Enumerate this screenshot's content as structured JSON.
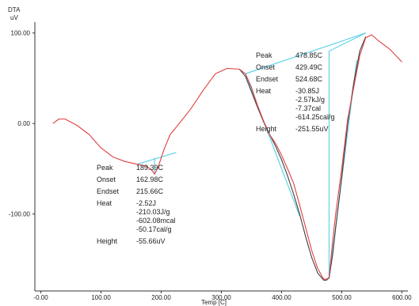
{
  "chart_data": {
    "type": "line",
    "ylabel": "DTA",
    "yunit": "uV",
    "xlabel": "Temp [C]",
    "xlim": [
      -10,
      610
    ],
    "ylim": [
      -185,
      112
    ],
    "x_ticks": [
      "-0.00",
      "100.00",
      "200.00",
      "300.00",
      "400.00",
      "500.00",
      "600.00"
    ],
    "x_tick_values": [
      0,
      100,
      200,
      300,
      400,
      500,
      600
    ],
    "y_ticks": [
      "100.00",
      "0.00",
      "-100.00"
    ],
    "y_tick_values": [
      100,
      0,
      -100
    ],
    "colors": {
      "curve_main": "#e04040",
      "curve_secondary": "#404040",
      "baseline": "#5fd3e8",
      "axis": "#333333"
    },
    "series": [
      {
        "color": "#e04040",
        "x": [
          20,
          30,
          40,
          60,
          80,
          100,
          120,
          140,
          160,
          175,
          185,
          189,
          195,
          205,
          215,
          230,
          250,
          270,
          290,
          310,
          330,
          340,
          350,
          360,
          370,
          380,
          390,
          400,
          410,
          420,
          430,
          440,
          450,
          460,
          470,
          475,
          479,
          485,
          490,
          500,
          510,
          520,
          530,
          540,
          550,
          560,
          580,
          600
        ],
        "y": [
          0,
          5,
          5,
          -2,
          -12,
          -27,
          -37,
          -42,
          -45,
          -47,
          -52,
          -56,
          -48,
          -28,
          -12,
          0,
          17,
          37,
          55,
          61,
          60,
          55,
          40,
          20,
          3,
          -12,
          -22,
          -35,
          -50,
          -66,
          -90,
          -115,
          -140,
          -160,
          -172,
          -172,
          -170,
          -130,
          -100,
          -50,
          5,
          40,
          75,
          95,
          98,
          92,
          82,
          68
        ]
      },
      {
        "color": "#404040",
        "x": [
          330,
          340,
          350,
          360,
          370,
          380,
          390,
          400,
          410,
          420,
          430,
          440,
          450,
          460,
          470,
          475,
          479,
          485,
          490,
          500,
          510,
          520,
          530,
          540
        ],
        "y": [
          60,
          52,
          35,
          18,
          2,
          -12,
          -25,
          -40,
          -58,
          -78,
          -100,
          -125,
          -148,
          -165,
          -173,
          -173,
          -170,
          -145,
          -115,
          -60,
          0,
          45,
          80,
          96
        ]
      }
    ],
    "baselines": [
      {
        "x": [
          160,
          225
        ],
        "y": [
          -45,
          -32
        ]
      },
      {
        "x": [
          189,
          189
        ],
        "y": [
          -56,
          -38
        ]
      },
      {
        "x": [
          340,
          540
        ],
        "y": [
          55,
          100
        ]
      },
      {
        "x": [
          340,
          430
        ],
        "y": [
          55,
          -102
        ]
      },
      {
        "x": [
          479,
          479
        ],
        "y": [
          -172,
          80
        ]
      },
      {
        "x": [
          479,
          540
        ],
        "y": [
          80,
          100
        ]
      },
      {
        "x": [
          479,
          525
        ],
        "y": [
          -172,
          70
        ]
      }
    ],
    "annotations": [
      {
        "rows": [
          {
            "label": "Peak",
            "values": [
              "189.39C"
            ]
          },
          {
            "label": "Onset",
            "values": [
              "162.98C"
            ]
          },
          {
            "label": "Endset",
            "values": [
              "215.66C"
            ]
          },
          {
            "label": "Heat",
            "values": [
              "-2.52J",
              "-210.03J/g",
              "-602.08mcal",
              "-50.17cal/g"
            ]
          },
          {
            "label": "Height",
            "values": [
              "-55.66uV"
            ]
          }
        ]
      },
      {
        "rows": [
          {
            "label": "Peak",
            "values": [
              "478.85C"
            ]
          },
          {
            "label": "Onset",
            "values": [
              "429.49C"
            ]
          },
          {
            "label": "Endset",
            "values": [
              "524.68C"
            ]
          },
          {
            "label": "Heat",
            "values": [
              "-30.85J",
              "-2.57kJ/g",
              "-7.37cal",
              "-614.25cal/g"
            ]
          },
          {
            "label": "Height",
            "values": [
              "-251.55uV"
            ]
          }
        ]
      }
    ]
  }
}
